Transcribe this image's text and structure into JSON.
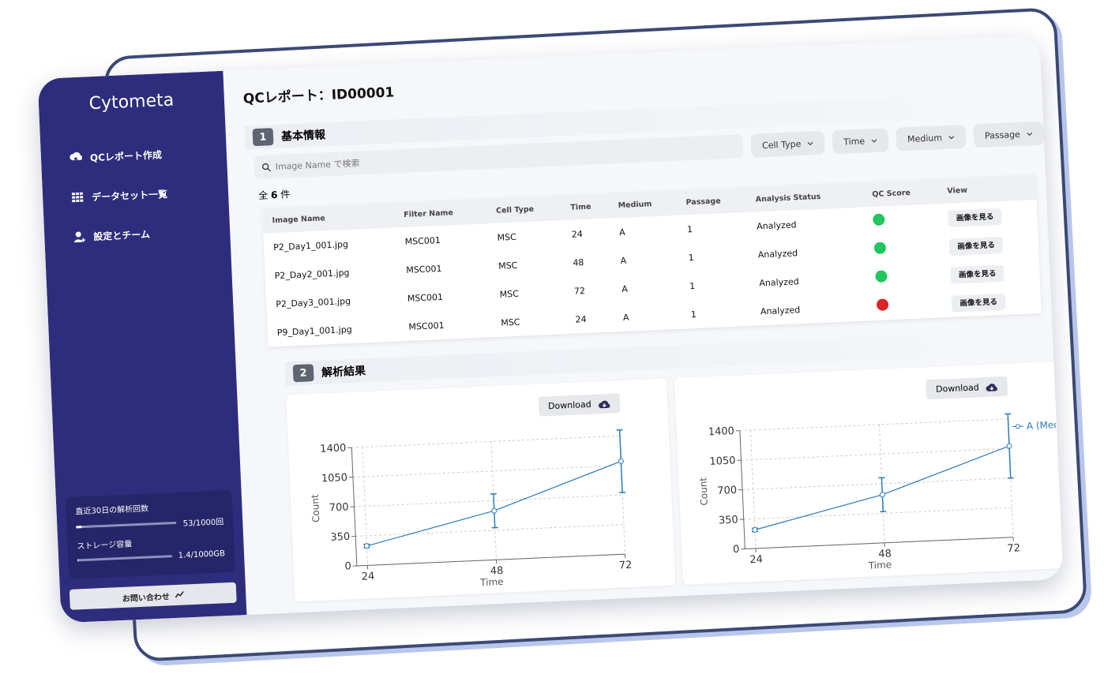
{
  "brand": "Cytometa",
  "nav": [
    "QCレポート作成",
    "データセット一覧",
    "設定とチーム"
  ],
  "usage": [
    {
      "label": "直近30日の解析回数",
      "value": "53/1000回",
      "fill": 5.3
    },
    {
      "label": "ストレージ容量",
      "value": "1.4/1000GB",
      "fill": 0.14
    }
  ],
  "contact": "お問い合わせ",
  "header": {
    "title": "QCレポート：ID00001"
  },
  "section1": {
    "number": "1",
    "title": "基本情報"
  },
  "search": {
    "placeholder": "Image Name で検索"
  },
  "filters": [
    "Cell Type",
    "Time",
    "Medium",
    "Passage"
  ],
  "count": {
    "prefix": "全",
    "number": "6",
    "suffix": "件"
  },
  "table": {
    "columns": [
      "Image Name",
      "Filter Name",
      "Cell Type",
      "Time",
      "Medium",
      "Passage",
      "Analysis Status",
      "QC Score",
      "View"
    ],
    "rows": [
      [
        "P2_Day1_001.jpg",
        "MSC001",
        "MSC",
        "24",
        "A",
        "1",
        "Analyzed",
        "#22c55e",
        "画像を見る"
      ],
      [
        "P2_Day2_001.jpg",
        "MSC001",
        "MSC",
        "48",
        "A",
        "1",
        "Analyzed",
        "#22c55e",
        "画像を見る"
      ],
      [
        "P2_Day3_001.jpg",
        "MSC001",
        "MSC",
        "72",
        "A",
        "1",
        "Analyzed",
        "#22c55e",
        "画像を見る"
      ],
      [
        "P9_Day1_001.jpg",
        "MSC001",
        "MSC",
        "24",
        "A",
        "1",
        "Analyzed",
        "#dc2626",
        "画像を見る"
      ]
    ]
  },
  "section2": {
    "number": "2",
    "title": "解析結果"
  },
  "chart_data": [
    {
      "type": "line",
      "button": "Download",
      "x": [
        24,
        48,
        72
      ],
      "xlim": [
        22,
        72
      ],
      "xticks": [
        24,
        48,
        72
      ],
      "ylim": [
        0,
        1400
      ],
      "yticks": [
        0,
        350,
        700,
        1050,
        1400
      ],
      "xlabel": "Time",
      "ylabel": "Count",
      "grid": true,
      "series": [
        {
          "color": "#2b7bba",
          "values": [
            230,
            580,
            1100
          ],
          "errors": [
            20,
            200,
            370
          ]
        }
      ]
    },
    {
      "type": "line",
      "button": "Download",
      "x": [
        24,
        48,
        72
      ],
      "xlim": [
        22,
        72
      ],
      "xticks": [
        24,
        48,
        72
      ],
      "ylim": [
        0,
        1400
      ],
      "yticks": [
        0,
        350,
        700,
        1050,
        1400
      ],
      "xlabel": "Time",
      "ylabel": "Count",
      "grid": true,
      "legend": "upper right",
      "series": [
        {
          "name": "A (Medium)",
          "color": "#2b7bba",
          "values": [
            220,
            570,
            1080
          ],
          "errors": [
            20,
            200,
            380
          ]
        }
      ]
    }
  ]
}
